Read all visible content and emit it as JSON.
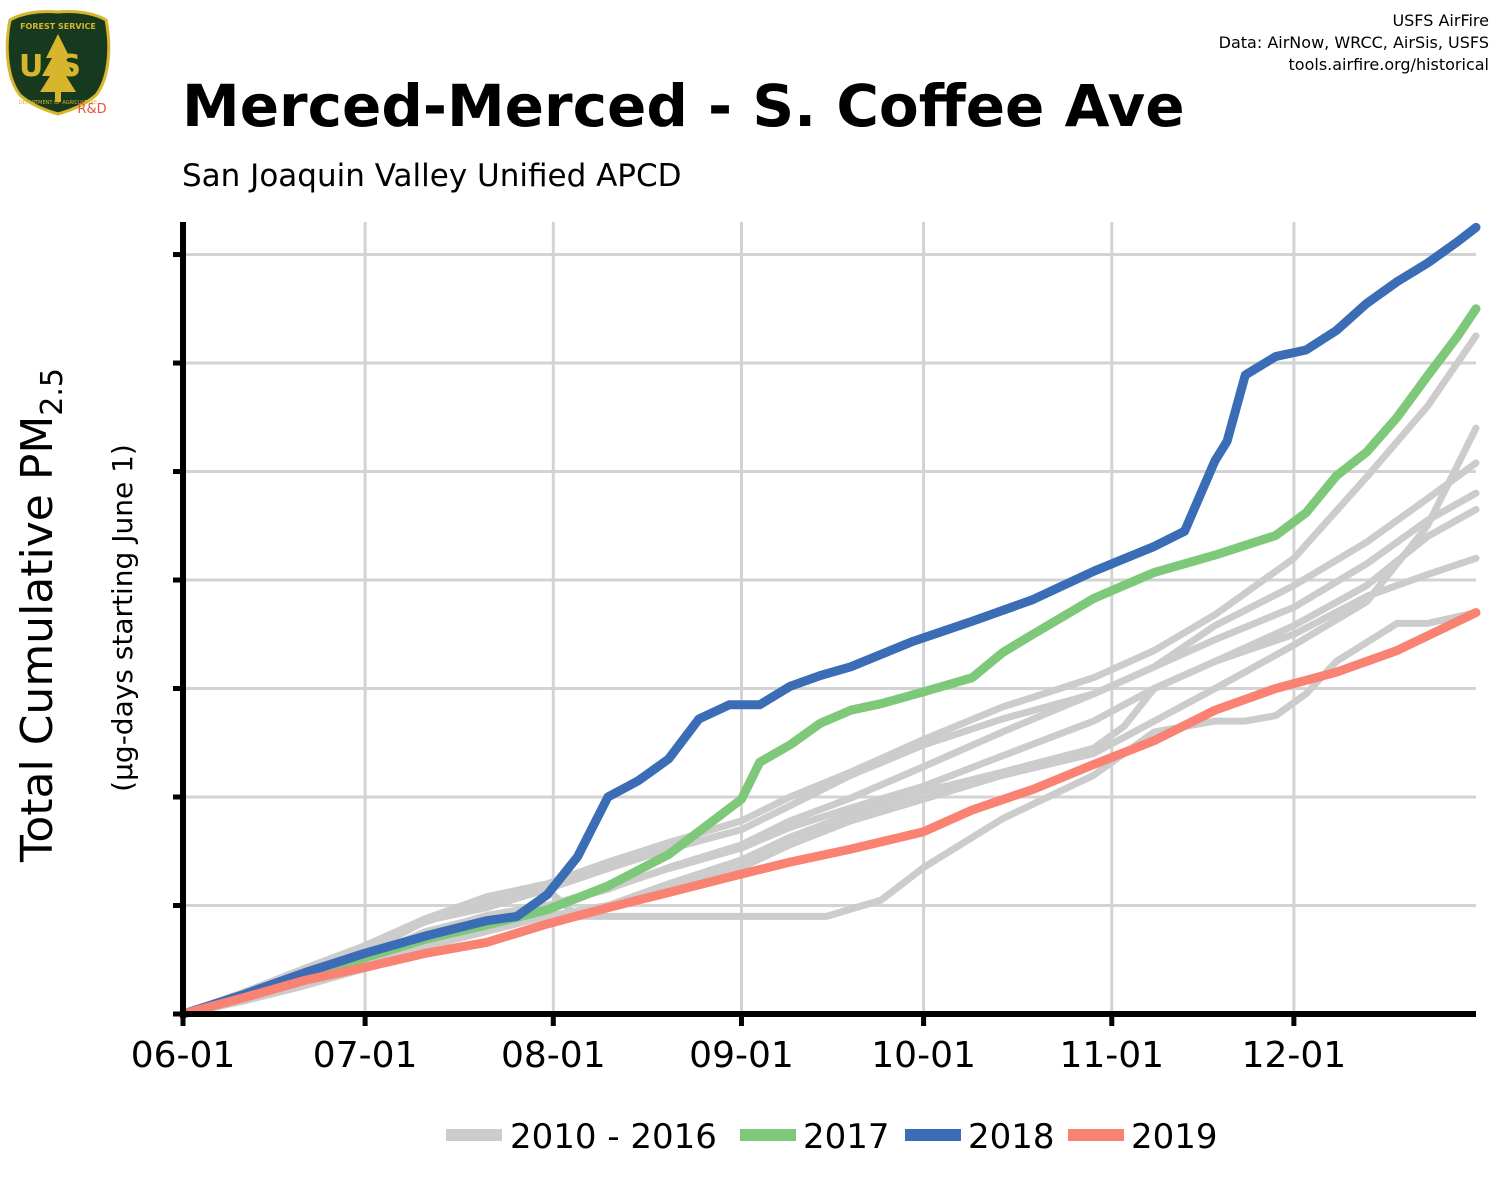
{
  "header": {
    "title": "Merced-Merced - S. Coffee Ave",
    "subtitle": "San Joaquin Valley Unified APCD",
    "credits": [
      "USFS AirFire",
      "Data: AirNow, WRCC, AirSis, USFS",
      "tools.airfire.org/historical"
    ]
  },
  "logo": {
    "top_text": "FOREST SERVICE",
    "letters": "US",
    "bottom_text": "DEPARTMENT OF AGRICULTURE",
    "tag": "R&D"
  },
  "colors": {
    "historical": "#cccccc",
    "y2017": "#7ec87a",
    "y2018": "#3a6db5",
    "y2019": "#f98272",
    "grid": "#d3d3d3",
    "axis": "#000000",
    "logo_shield": "#173a1f",
    "logo_gold": "#d7b52c",
    "logo_tag": "#e8553c"
  },
  "chart_data": {
    "type": "line",
    "ylabel_main": "Total Cumulative PM",
    "ylabel_sub": "2.5",
    "ylabel_note": "(µg-days starting June 1)",
    "x_tick_labels": [
      "06-01",
      "07-01",
      "08-01",
      "09-01",
      "10-01",
      "11-01",
      "12-01"
    ],
    "x_ticks": [
      0,
      30,
      61,
      92,
      122,
      153,
      183
    ],
    "xlim": [
      0,
      213
    ],
    "ylim": [
      0,
      7300
    ],
    "y_gridlines": [
      1000,
      2000,
      3000,
      4000,
      5000,
      6000,
      7000
    ],
    "grid": true,
    "legend": {
      "position": "bottom",
      "entries": [
        {
          "label": "2010 - 2016",
          "color_key": "historical"
        },
        {
          "label": "2017",
          "color_key": "y2017"
        },
        {
          "label": "2018",
          "color_key": "y2018"
        },
        {
          "label": "2019",
          "color_key": "y2019"
        }
      ]
    },
    "historical_series": [
      {
        "points": [
          [
            0,
            0
          ],
          [
            10,
            150
          ],
          [
            20,
            330
          ],
          [
            30,
            520
          ],
          [
            40,
            760
          ],
          [
            50,
            900
          ],
          [
            60,
            1000
          ],
          [
            70,
            1150
          ],
          [
            80,
            1350
          ],
          [
            92,
            1560
          ],
          [
            100,
            1780
          ],
          [
            110,
            1990
          ],
          [
            122,
            2280
          ],
          [
            135,
            2600
          ],
          [
            150,
            2950
          ],
          [
            160,
            3200
          ],
          [
            170,
            3580
          ],
          [
            183,
            3950
          ],
          [
            195,
            4350
          ],
          [
            205,
            4750
          ],
          [
            213,
            5080
          ]
        ]
      },
      {
        "points": [
          [
            0,
            0
          ],
          [
            10,
            200
          ],
          [
            20,
            420
          ],
          [
            30,
            630
          ],
          [
            40,
            880
          ],
          [
            50,
            1080
          ],
          [
            60,
            1200
          ],
          [
            70,
            1400
          ],
          [
            80,
            1580
          ],
          [
            92,
            1780
          ],
          [
            100,
            2000
          ],
          [
            110,
            2230
          ],
          [
            122,
            2530
          ],
          [
            135,
            2830
          ],
          [
            150,
            3100
          ],
          [
            160,
            3350
          ],
          [
            170,
            3680
          ],
          [
            183,
            4200
          ],
          [
            195,
            4950
          ],
          [
            205,
            5600
          ],
          [
            213,
            6250
          ]
        ]
      },
      {
        "points": [
          [
            0,
            0
          ],
          [
            10,
            180
          ],
          [
            20,
            400
          ],
          [
            30,
            620
          ],
          [
            40,
            850
          ],
          [
            50,
            1030
          ],
          [
            60,
            1150
          ],
          [
            70,
            1340
          ],
          [
            80,
            1520
          ],
          [
            92,
            1700
          ],
          [
            100,
            1920
          ],
          [
            110,
            2200
          ],
          [
            122,
            2480
          ],
          [
            135,
            2720
          ],
          [
            150,
            2950
          ],
          [
            160,
            3200
          ],
          [
            170,
            3450
          ],
          [
            183,
            3750
          ],
          [
            195,
            4150
          ],
          [
            205,
            4550
          ],
          [
            213,
            4800
          ]
        ]
      },
      {
        "points": [
          [
            0,
            0
          ],
          [
            10,
            150
          ],
          [
            20,
            320
          ],
          [
            30,
            510
          ],
          [
            40,
            740
          ],
          [
            50,
            910
          ],
          [
            60,
            1000
          ],
          [
            70,
            1160
          ],
          [
            80,
            1340
          ],
          [
            92,
            1530
          ],
          [
            100,
            1720
          ],
          [
            110,
            1900
          ],
          [
            122,
            2100
          ],
          [
            135,
            2380
          ],
          [
            150,
            2700
          ],
          [
            160,
            3000
          ],
          [
            170,
            3250
          ],
          [
            183,
            3580
          ],
          [
            195,
            3950
          ],
          [
            205,
            4400
          ],
          [
            213,
            4650
          ]
        ]
      },
      {
        "points": [
          [
            0,
            0
          ],
          [
            10,
            120
          ],
          [
            20,
            280
          ],
          [
            30,
            440
          ],
          [
            40,
            650
          ],
          [
            50,
            820
          ],
          [
            60,
            900
          ],
          [
            70,
            1000
          ],
          [
            80,
            1200
          ],
          [
            92,
            1420
          ],
          [
            100,
            1630
          ],
          [
            110,
            1840
          ],
          [
            122,
            2050
          ],
          [
            135,
            2230
          ],
          [
            150,
            2450
          ],
          [
            155,
            2650
          ],
          [
            160,
            3000
          ],
          [
            170,
            3250
          ],
          [
            183,
            3500
          ],
          [
            195,
            3850
          ],
          [
            205,
            4050
          ],
          [
            213,
            4200
          ]
        ]
      },
      {
        "points": [
          [
            0,
            0
          ],
          [
            10,
            120
          ],
          [
            20,
            260
          ],
          [
            30,
            420
          ],
          [
            40,
            620
          ],
          [
            50,
            760
          ],
          [
            60,
            900
          ],
          [
            70,
            1000
          ],
          [
            80,
            1150
          ],
          [
            92,
            1350
          ],
          [
            100,
            1560
          ],
          [
            110,
            1780
          ],
          [
            122,
            1980
          ],
          [
            135,
            2200
          ],
          [
            150,
            2400
          ],
          [
            160,
            2700
          ],
          [
            170,
            3000
          ],
          [
            183,
            3400
          ],
          [
            195,
            3800
          ],
          [
            205,
            4500
          ],
          [
            213,
            5400
          ]
        ]
      },
      {
        "points": [
          [
            0,
            0
          ],
          [
            5,
            60
          ],
          [
            10,
            140
          ],
          [
            20,
            320
          ],
          [
            30,
            560
          ],
          [
            40,
            860
          ],
          [
            50,
            980
          ],
          [
            60,
            1150
          ],
          [
            65,
            900
          ],
          [
            70,
            900
          ],
          [
            80,
            900
          ],
          [
            92,
            900
          ],
          [
            100,
            900
          ],
          [
            106,
            900
          ],
          [
            115,
            1050
          ],
          [
            122,
            1350
          ],
          [
            135,
            1800
          ],
          [
            150,
            2200
          ],
          [
            160,
            2600
          ],
          [
            170,
            2700
          ],
          [
            175,
            2700
          ],
          [
            180,
            2750
          ],
          [
            185,
            2950
          ],
          [
            190,
            3250
          ],
          [
            200,
            3600
          ],
          [
            205,
            3600
          ],
          [
            213,
            3700
          ]
        ]
      }
    ],
    "series": [
      {
        "name": "2017",
        "color_key": "y2017",
        "points": [
          [
            0,
            0
          ],
          [
            10,
            160
          ],
          [
            20,
            340
          ],
          [
            30,
            520
          ],
          [
            40,
            690
          ],
          [
            50,
            820
          ],
          [
            60,
            960
          ],
          [
            70,
            1180
          ],
          [
            80,
            1470
          ],
          [
            92,
            1980
          ],
          [
            95,
            2320
          ],
          [
            100,
            2480
          ],
          [
            105,
            2680
          ],
          [
            110,
            2800
          ],
          [
            115,
            2860
          ],
          [
            122,
            2970
          ],
          [
            130,
            3100
          ],
          [
            135,
            3330
          ],
          [
            140,
            3500
          ],
          [
            150,
            3830
          ],
          [
            160,
            4070
          ],
          [
            170,
            4230
          ],
          [
            180,
            4410
          ],
          [
            185,
            4620
          ],
          [
            190,
            4960
          ],
          [
            195,
            5180
          ],
          [
            200,
            5500
          ],
          [
            205,
            5880
          ],
          [
            210,
            6250
          ],
          [
            213,
            6500
          ]
        ]
      },
      {
        "name": "2018",
        "color_key": "y2018",
        "points": [
          [
            0,
            0
          ],
          [
            10,
            180
          ],
          [
            20,
            380
          ],
          [
            30,
            560
          ],
          [
            40,
            720
          ],
          [
            50,
            860
          ],
          [
            55,
            900
          ],
          [
            60,
            1100
          ],
          [
            65,
            1450
          ],
          [
            70,
            2000
          ],
          [
            75,
            2150
          ],
          [
            80,
            2350
          ],
          [
            85,
            2720
          ],
          [
            90,
            2850
          ],
          [
            95,
            2850
          ],
          [
            100,
            3020
          ],
          [
            105,
            3120
          ],
          [
            110,
            3200
          ],
          [
            120,
            3430
          ],
          [
            130,
            3620
          ],
          [
            140,
            3820
          ],
          [
            150,
            4080
          ],
          [
            160,
            4310
          ],
          [
            165,
            4450
          ],
          [
            170,
            5100
          ],
          [
            172,
            5280
          ],
          [
            175,
            5890
          ],
          [
            180,
            6060
          ],
          [
            185,
            6120
          ],
          [
            190,
            6300
          ],
          [
            195,
            6550
          ],
          [
            200,
            6750
          ],
          [
            205,
            6920
          ],
          [
            210,
            7120
          ],
          [
            213,
            7250
          ]
        ]
      },
      {
        "name": "2019",
        "color_key": "y2019",
        "points": [
          [
            0,
            0
          ],
          [
            10,
            150
          ],
          [
            20,
            310
          ],
          [
            30,
            430
          ],
          [
            40,
            560
          ],
          [
            50,
            660
          ],
          [
            60,
            830
          ],
          [
            70,
            980
          ],
          [
            80,
            1120
          ],
          [
            92,
            1290
          ],
          [
            100,
            1400
          ],
          [
            110,
            1520
          ],
          [
            122,
            1680
          ],
          [
            130,
            1880
          ],
          [
            140,
            2070
          ],
          [
            150,
            2300
          ],
          [
            160,
            2520
          ],
          [
            170,
            2800
          ],
          [
            180,
            3000
          ],
          [
            190,
            3150
          ],
          [
            200,
            3350
          ],
          [
            213,
            3700
          ]
        ]
      }
    ]
  }
}
